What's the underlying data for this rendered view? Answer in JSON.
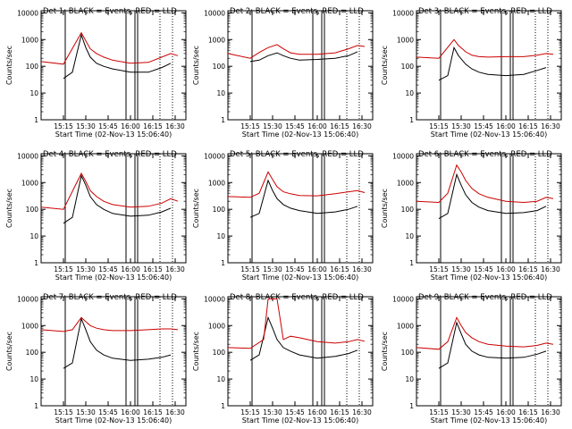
{
  "chart_data": [
    {
      "type": "line",
      "title": "Det 1: BLACK = Events, RED = LLD",
      "xlabel": "Start Time (02-Nov-13 15:06:40)",
      "ylabel": "Counts/sec",
      "x_ticks": [
        "15:15",
        "15:30",
        "15:45",
        "16:00",
        "16:15",
        "16:30"
      ],
      "y_ticks": [
        "1",
        "10",
        "100",
        "1000",
        "10000"
      ],
      "ylim": [
        1,
        12000
      ],
      "scale_y": "log",
      "series": [
        {
          "name": "Events",
          "color": "#000000",
          "x": [
            15.25,
            15.35,
            15.45,
            15.5,
            15.55,
            15.62,
            15.7,
            15.8,
            16.0,
            16.2,
            16.35,
            16.45
          ],
          "y": [
            35,
            60,
            1500,
            500,
            220,
            130,
            100,
            80,
            60,
            60,
            90,
            130
          ]
        },
        {
          "name": "LLD",
          "color": "#cc0000",
          "x": [
            15.0,
            15.25,
            15.45,
            15.5,
            15.55,
            15.62,
            15.7,
            15.8,
            16.0,
            16.2,
            16.35,
            16.45,
            16.53
          ],
          "y": [
            150,
            120,
            1800,
            900,
            450,
            300,
            220,
            170,
            130,
            140,
            220,
            300,
            250
          ]
        }
      ]
    },
    {
      "type": "line",
      "title": "Det 2: BLACK = Events, RED = LLD",
      "xlabel": "Start Time (02-Nov-13 15:06:40)",
      "ylabel": "Counts/sec",
      "x_ticks": [
        "15:15",
        "15:30",
        "15:45",
        "16:00",
        "16:15",
        "16:30"
      ],
      "y_ticks": [
        "1",
        "10",
        "100",
        "1000",
        "10000"
      ],
      "ylim": [
        1,
        12000
      ],
      "scale_y": "log",
      "series": [
        {
          "name": "Events",
          "color": "#000000",
          "x": [
            15.25,
            15.35,
            15.45,
            15.55,
            15.62,
            15.7,
            15.8,
            16.0,
            16.2,
            16.35,
            16.45
          ],
          "y": [
            150,
            170,
            250,
            320,
            250,
            200,
            170,
            180,
            200,
            250,
            350
          ]
        },
        {
          "name": "LLD",
          "color": "#cc0000",
          "x": [
            15.0,
            15.25,
            15.35,
            15.45,
            15.55,
            15.62,
            15.7,
            15.8,
            16.0,
            16.2,
            16.35,
            16.45,
            16.53
          ],
          "y": [
            300,
            200,
            330,
            500,
            650,
            450,
            320,
            280,
            280,
            320,
            450,
            600,
            550
          ]
        }
      ]
    },
    {
      "type": "line",
      "title": "Det 3: BLACK = Events, RED = LLD",
      "xlabel": "Start Time (02-Nov-13 15:06:40)",
      "ylabel": "Counts/sec",
      "x_ticks": [
        "15:15",
        "15:30",
        "15:45",
        "16:00",
        "16:15",
        "16:30"
      ],
      "y_ticks": [
        "1",
        "10",
        "100",
        "1000",
        "10000"
      ],
      "ylim": [
        1,
        12000
      ],
      "scale_y": "log",
      "series": [
        {
          "name": "Events",
          "color": "#000000",
          "x": [
            15.25,
            15.35,
            15.42,
            15.47,
            15.55,
            15.62,
            15.7,
            15.8,
            16.0,
            16.2,
            16.35,
            16.45
          ],
          "y": [
            30,
            45,
            500,
            250,
            120,
            80,
            60,
            50,
            45,
            50,
            70,
            90
          ]
        },
        {
          "name": "LLD",
          "color": "#cc0000",
          "x": [
            15.0,
            15.25,
            15.42,
            15.47,
            15.55,
            15.62,
            15.7,
            15.8,
            16.0,
            16.2,
            16.35,
            16.45,
            16.53
          ],
          "y": [
            220,
            200,
            1000,
            600,
            350,
            260,
            230,
            220,
            230,
            230,
            260,
            300,
            280
          ]
        }
      ]
    },
    {
      "type": "line",
      "title": "Det 4: BLACK = Events, RED = LLD",
      "xlabel": "Start Time (02-Nov-13 15:06:40)",
      "ylabel": "Counts/sec",
      "x_ticks": [
        "15:15",
        "15:30",
        "15:45",
        "16:00",
        "16:15",
        "16:30"
      ],
      "y_ticks": [
        "1",
        "10",
        "100",
        "1000",
        "10000"
      ],
      "ylim": [
        1,
        12000
      ],
      "scale_y": "log",
      "series": [
        {
          "name": "Events",
          "color": "#000000",
          "x": [
            15.25,
            15.35,
            15.45,
            15.5,
            15.55,
            15.62,
            15.7,
            15.8,
            16.0,
            16.2,
            16.35,
            16.45
          ],
          "y": [
            30,
            50,
            1800,
            800,
            300,
            150,
            100,
            70,
            55,
            60,
            80,
            110
          ]
        },
        {
          "name": "LLD",
          "color": "#cc0000",
          "x": [
            15.0,
            15.25,
            15.45,
            15.5,
            15.55,
            15.62,
            15.7,
            15.8,
            16.0,
            16.2,
            16.35,
            16.45,
            16.53
          ],
          "y": [
            120,
            100,
            2200,
            1100,
            500,
            300,
            200,
            150,
            120,
            130,
            170,
            250,
            200
          ]
        }
      ]
    },
    {
      "type": "line",
      "title": "Det 5: BLACK = Events, RED = LLD",
      "xlabel": "Start Time (02-Nov-13 15:06:40)",
      "ylabel": "Counts/sec",
      "x_ticks": [
        "15:15",
        "15:30",
        "15:45",
        "16:00",
        "16:15",
        "16:30"
      ],
      "y_ticks": [
        "1",
        "10",
        "100",
        "1000",
        "10000"
      ],
      "ylim": [
        1,
        12000
      ],
      "scale_y": "log",
      "series": [
        {
          "name": "Events",
          "color": "#000000",
          "x": [
            15.25,
            15.35,
            15.45,
            15.5,
            15.55,
            15.62,
            15.7,
            15.8,
            16.0,
            16.2,
            16.35,
            16.45
          ],
          "y": [
            50,
            70,
            1200,
            500,
            250,
            150,
            110,
            90,
            70,
            80,
            100,
            130
          ]
        },
        {
          "name": "LLD",
          "color": "#cc0000",
          "x": [
            15.0,
            15.25,
            15.35,
            15.45,
            15.5,
            15.55,
            15.62,
            15.7,
            15.8,
            16.0,
            16.2,
            16.35,
            16.45,
            16.53
          ],
          "y": [
            300,
            280,
            400,
            2500,
            1300,
            700,
            450,
            380,
            330,
            320,
            380,
            450,
            500,
            420
          ]
        }
      ]
    },
    {
      "type": "line",
      "title": "Det 6: BLACK = Events, RED = LLD",
      "xlabel": "Start Time (02-Nov-13 15:06:40)",
      "ylabel": "Counts/sec",
      "x_ticks": [
        "15:15",
        "15:30",
        "15:45",
        "16:00",
        "16:15",
        "16:30"
      ],
      "y_ticks": [
        "1",
        "10",
        "100",
        "1000",
        "10000"
      ],
      "ylim": [
        1,
        12000
      ],
      "scale_y": "log",
      "series": [
        {
          "name": "Events",
          "color": "#000000",
          "x": [
            15.25,
            15.35,
            15.45,
            15.5,
            15.55,
            15.62,
            15.7,
            15.8,
            16.0,
            16.2,
            16.35,
            16.45
          ],
          "y": [
            45,
            70,
            2000,
            800,
            350,
            180,
            120,
            90,
            70,
            75,
            90,
            130
          ]
        },
        {
          "name": "LLD",
          "color": "#cc0000",
          "x": [
            15.0,
            15.25,
            15.35,
            15.45,
            15.5,
            15.55,
            15.62,
            15.7,
            15.8,
            16.0,
            16.2,
            16.35,
            16.45,
            16.53
          ],
          "y": [
            200,
            180,
            400,
            4500,
            2500,
            1200,
            600,
            380,
            280,
            200,
            180,
            200,
            280,
            250
          ]
        }
      ]
    },
    {
      "type": "line",
      "title": "Det 7: BLACK = Events, RED = LLD",
      "xlabel": "Start Time (02-Nov-13 15:06:40)",
      "ylabel": "Counts/sec",
      "x_ticks": [
        "15:15",
        "15:30",
        "15:45",
        "16:00",
        "16:15",
        "16:30"
      ],
      "y_ticks": [
        "1",
        "10",
        "100",
        "1000",
        "10000"
      ],
      "ylim": [
        1,
        12000
      ],
      "scale_y": "log",
      "series": [
        {
          "name": "Events",
          "color": "#000000",
          "x": [
            15.25,
            15.35,
            15.45,
            15.5,
            15.55,
            15.62,
            15.7,
            15.8,
            16.0,
            16.2,
            16.35,
            16.45
          ],
          "y": [
            25,
            40,
            1800,
            700,
            250,
            120,
            80,
            60,
            50,
            55,
            65,
            80
          ]
        },
        {
          "name": "LLD",
          "color": "#cc0000",
          "x": [
            15.0,
            15.25,
            15.35,
            15.45,
            15.5,
            15.55,
            15.62,
            15.7,
            15.8,
            16.0,
            16.2,
            16.35,
            16.45,
            16.53
          ],
          "y": [
            700,
            600,
            700,
            2000,
            1400,
            1000,
            800,
            700,
            650,
            650,
            700,
            750,
            750,
            700
          ]
        }
      ]
    },
    {
      "type": "line",
      "title": "Det 8: BLACK = Events, RED = LLD",
      "xlabel": "Start Time (02-Nov-13 15:06:40)",
      "ylabel": "Counts/sec",
      "x_ticks": [
        "15:15",
        "15:30",
        "15:45",
        "16:00",
        "16:15",
        "16:30"
      ],
      "y_ticks": [
        "1",
        "10",
        "100",
        "1000",
        "10000"
      ],
      "ylim": [
        1,
        12000
      ],
      "scale_y": "log",
      "series": [
        {
          "name": "Events",
          "color": "#000000",
          "x": [
            15.25,
            15.35,
            15.45,
            15.5,
            15.55,
            15.62,
            15.7,
            15.8,
            16.0,
            16.2,
            16.35,
            16.45
          ],
          "y": [
            50,
            80,
            2000,
            800,
            300,
            150,
            110,
            80,
            60,
            70,
            90,
            120
          ]
        },
        {
          "name": "LLD",
          "color": "#cc0000",
          "x": [
            15.0,
            15.25,
            15.4,
            15.45,
            15.5,
            15.55,
            15.62,
            15.7,
            15.8,
            16.0,
            16.2,
            16.35,
            16.45,
            16.53
          ],
          "y": [
            150,
            140,
            300,
            10000,
            10000,
            10000,
            300,
            400,
            350,
            250,
            220,
            250,
            300,
            260
          ]
        }
      ]
    },
    {
      "type": "line",
      "title": "Det 9: BLACK = Events, RED = LLD",
      "xlabel": "Start Time (02-Nov-13 15:06:40)",
      "ylabel": "Counts/sec",
      "x_ticks": [
        "15:15",
        "15:30",
        "15:45",
        "16:00",
        "16:15",
        "16:30"
      ],
      "y_ticks": [
        "1",
        "10",
        "100",
        "1000",
        "10000"
      ],
      "ylim": [
        1,
        12000
      ],
      "scale_y": "log",
      "series": [
        {
          "name": "Events",
          "color": "#000000",
          "x": [
            15.25,
            15.35,
            15.45,
            15.5,
            15.55,
            15.62,
            15.7,
            15.8,
            16.0,
            16.2,
            16.35,
            16.45
          ],
          "y": [
            25,
            40,
            1300,
            500,
            200,
            110,
            80,
            65,
            60,
            65,
            85,
            110
          ]
        },
        {
          "name": "LLD",
          "color": "#cc0000",
          "x": [
            15.0,
            15.25,
            15.35,
            15.45,
            15.5,
            15.55,
            15.62,
            15.7,
            15.8,
            16.0,
            16.2,
            16.35,
            16.45,
            16.53
          ],
          "y": [
            150,
            130,
            250,
            2000,
            1000,
            550,
            350,
            250,
            200,
            170,
            160,
            180,
            220,
            200
          ]
        }
      ]
    }
  ]
}
